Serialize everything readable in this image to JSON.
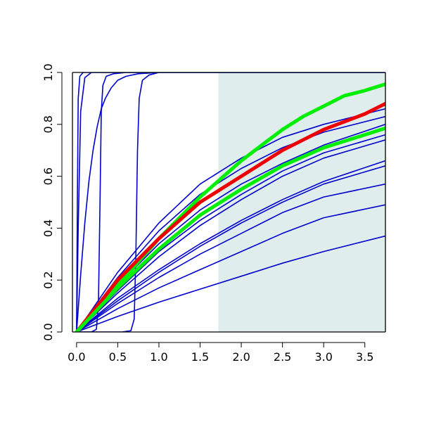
{
  "chart_data": {
    "type": "line",
    "title": "",
    "xlabel": "",
    "ylabel": "",
    "xlim": [
      -0.05,
      3.75
    ],
    "ylim": [
      0,
      1
    ],
    "x_ticks": [
      "0.0",
      "0.5",
      "1.0",
      "1.5",
      "2.0",
      "2.5",
      "3.0",
      "3.5"
    ],
    "y_ticks": [
      "0.0",
      "0.2",
      "0.4",
      "0.6",
      "0.8",
      "1.0"
    ],
    "grid": false,
    "legend": "none",
    "shaded_region": {
      "x_from": 1.72,
      "x_to": 3.75,
      "color": "#e0eded"
    },
    "series": [
      {
        "color": "#0000cd",
        "width": 1.6,
        "points": [
          [
            0.0,
            0
          ],
          [
            0.01,
            0.5
          ],
          [
            0.02,
            0.9
          ],
          [
            0.04,
            0.985
          ],
          [
            0.08,
            1
          ],
          [
            3.75,
            1
          ]
        ]
      },
      {
        "color": "#0000cd",
        "width": 1.6,
        "points": [
          [
            0.0,
            0
          ],
          [
            0.02,
            0.4
          ],
          [
            0.05,
            0.85
          ],
          [
            0.1,
            0.98
          ],
          [
            0.18,
            1
          ],
          [
            3.75,
            1
          ]
        ]
      },
      {
        "color": "#0000cd",
        "width": 1.6,
        "points": [
          [
            0.0,
            0
          ],
          [
            0.05,
            0.22
          ],
          [
            0.1,
            0.42
          ],
          [
            0.15,
            0.58
          ],
          [
            0.2,
            0.7
          ],
          [
            0.25,
            0.79
          ],
          [
            0.3,
            0.86
          ],
          [
            0.35,
            0.9
          ],
          [
            0.42,
            0.94
          ],
          [
            0.5,
            0.97
          ],
          [
            0.6,
            0.985
          ],
          [
            0.75,
            0.995
          ],
          [
            1.0,
            1
          ],
          [
            3.75,
            1
          ]
        ]
      },
      {
        "color": "#0000cd",
        "width": 1.6,
        "points": [
          [
            0.0,
            0
          ],
          [
            0.18,
            0
          ],
          [
            0.24,
            0.01
          ],
          [
            0.265,
            0.1
          ],
          [
            0.285,
            0.5
          ],
          [
            0.3,
            0.85
          ],
          [
            0.32,
            0.95
          ],
          [
            0.36,
            0.985
          ],
          [
            0.45,
            0.995
          ],
          [
            0.6,
            1
          ],
          [
            3.75,
            1
          ]
        ]
      },
      {
        "color": "#0000cd",
        "width": 1.6,
        "points": [
          [
            0.0,
            0
          ],
          [
            0.55,
            0
          ],
          [
            0.66,
            0.005
          ],
          [
            0.7,
            0.05
          ],
          [
            0.72,
            0.3
          ],
          [
            0.74,
            0.7
          ],
          [
            0.76,
            0.9
          ],
          [
            0.8,
            0.97
          ],
          [
            0.88,
            0.99
          ],
          [
            1.0,
            1
          ],
          [
            3.75,
            1
          ]
        ]
      },
      {
        "color": "#0000cd",
        "width": 1.6,
        "points": [
          [
            0.0,
            0
          ],
          [
            0.5,
            0.23
          ],
          [
            1.0,
            0.42
          ],
          [
            1.5,
            0.57
          ],
          [
            2.0,
            0.67
          ],
          [
            2.5,
            0.75
          ],
          [
            3.0,
            0.8
          ],
          [
            3.75,
            0.86
          ]
        ]
      },
      {
        "color": "#0000cd",
        "width": 1.6,
        "points": [
          [
            0.0,
            0
          ],
          [
            0.5,
            0.21
          ],
          [
            1.0,
            0.39
          ],
          [
            1.5,
            0.53
          ],
          [
            2.0,
            0.63
          ],
          [
            2.5,
            0.71
          ],
          [
            3.0,
            0.77
          ],
          [
            3.75,
            0.83
          ]
        ]
      },
      {
        "color": "#0000cd",
        "width": 1.6,
        "points": [
          [
            0.0,
            0
          ],
          [
            0.5,
            0.18
          ],
          [
            1.0,
            0.34
          ],
          [
            1.5,
            0.47
          ],
          [
            2.0,
            0.57
          ],
          [
            2.5,
            0.65
          ],
          [
            3.0,
            0.72
          ],
          [
            3.75,
            0.8
          ]
        ]
      },
      {
        "color": "#0000cd",
        "width": 1.6,
        "points": [
          [
            0.0,
            0
          ],
          [
            0.5,
            0.16
          ],
          [
            1.0,
            0.31
          ],
          [
            1.5,
            0.43
          ],
          [
            2.0,
            0.53
          ],
          [
            2.5,
            0.62
          ],
          [
            3.0,
            0.69
          ],
          [
            3.75,
            0.76
          ]
        ]
      },
      {
        "color": "#0000cd",
        "width": 1.6,
        "points": [
          [
            0.0,
            0
          ],
          [
            0.5,
            0.15
          ],
          [
            1.0,
            0.29
          ],
          [
            1.5,
            0.41
          ],
          [
            2.0,
            0.51
          ],
          [
            2.5,
            0.6
          ],
          [
            3.0,
            0.67
          ],
          [
            3.75,
            0.74
          ]
        ]
      },
      {
        "color": "#0000cd",
        "width": 1.6,
        "points": [
          [
            0.0,
            0
          ],
          [
            0.5,
            0.13
          ],
          [
            1.0,
            0.24
          ],
          [
            1.5,
            0.34
          ],
          [
            2.0,
            0.43
          ],
          [
            2.5,
            0.51
          ],
          [
            3.0,
            0.58
          ],
          [
            3.75,
            0.66
          ]
        ]
      },
      {
        "color": "#0000cd",
        "width": 1.6,
        "points": [
          [
            0.0,
            0
          ],
          [
            0.5,
            0.12
          ],
          [
            1.0,
            0.23
          ],
          [
            1.5,
            0.33
          ],
          [
            2.0,
            0.42
          ],
          [
            2.5,
            0.5
          ],
          [
            3.0,
            0.57
          ],
          [
            3.75,
            0.64
          ]
        ]
      },
      {
        "color": "#0000cd",
        "width": 1.6,
        "points": [
          [
            0.0,
            0
          ],
          [
            0.5,
            0.11
          ],
          [
            1.0,
            0.21
          ],
          [
            1.5,
            0.3
          ],
          [
            2.0,
            0.38
          ],
          [
            2.5,
            0.46
          ],
          [
            3.0,
            0.52
          ],
          [
            3.75,
            0.57
          ]
        ]
      },
      {
        "color": "#0000cd",
        "width": 1.6,
        "points": [
          [
            0.0,
            0
          ],
          [
            0.5,
            0.09
          ],
          [
            1.0,
            0.17
          ],
          [
            1.5,
            0.24
          ],
          [
            2.0,
            0.31
          ],
          [
            2.5,
            0.38
          ],
          [
            3.0,
            0.44
          ],
          [
            3.75,
            0.49
          ]
        ]
      },
      {
        "color": "#0000cd",
        "width": 1.6,
        "points": [
          [
            0.0,
            0
          ],
          [
            0.5,
            0.06
          ],
          [
            1.0,
            0.115
          ],
          [
            1.5,
            0.165
          ],
          [
            2.0,
            0.215
          ],
          [
            2.5,
            0.265
          ],
          [
            3.0,
            0.31
          ],
          [
            3.75,
            0.37
          ]
        ]
      },
      {
        "color": "#00ee00",
        "width": 5,
        "points": [
          [
            0.0,
            0
          ],
          [
            0.25,
            0.09
          ],
          [
            0.5,
            0.18
          ],
          [
            0.75,
            0.27
          ],
          [
            1.0,
            0.36
          ],
          [
            1.25,
            0.44
          ],
          [
            1.5,
            0.52
          ],
          [
            1.75,
            0.59
          ],
          [
            2.0,
            0.66
          ],
          [
            2.25,
            0.72
          ],
          [
            2.5,
            0.78
          ],
          [
            2.75,
            0.83
          ],
          [
            3.0,
            0.87
          ],
          [
            3.25,
            0.91
          ],
          [
            3.5,
            0.93
          ],
          [
            3.75,
            0.955
          ]
        ]
      },
      {
        "color": "#ee0000",
        "width": 5,
        "points": [
          [
            0.0,
            0
          ],
          [
            0.5,
            0.2
          ],
          [
            1.0,
            0.36
          ],
          [
            1.5,
            0.5
          ],
          [
            2.0,
            0.6
          ],
          [
            2.5,
            0.7
          ],
          [
            3.0,
            0.78
          ],
          [
            3.5,
            0.84
          ],
          [
            3.75,
            0.88
          ]
        ]
      },
      {
        "color": "#00ee00",
        "width": 5,
        "points": [
          [
            0.0,
            0
          ],
          [
            0.5,
            0.17
          ],
          [
            1.0,
            0.32
          ],
          [
            1.5,
            0.45
          ],
          [
            2.0,
            0.55
          ],
          [
            2.5,
            0.64
          ],
          [
            3.0,
            0.71
          ],
          [
            3.5,
            0.76
          ],
          [
            3.75,
            0.785
          ]
        ]
      }
    ]
  }
}
